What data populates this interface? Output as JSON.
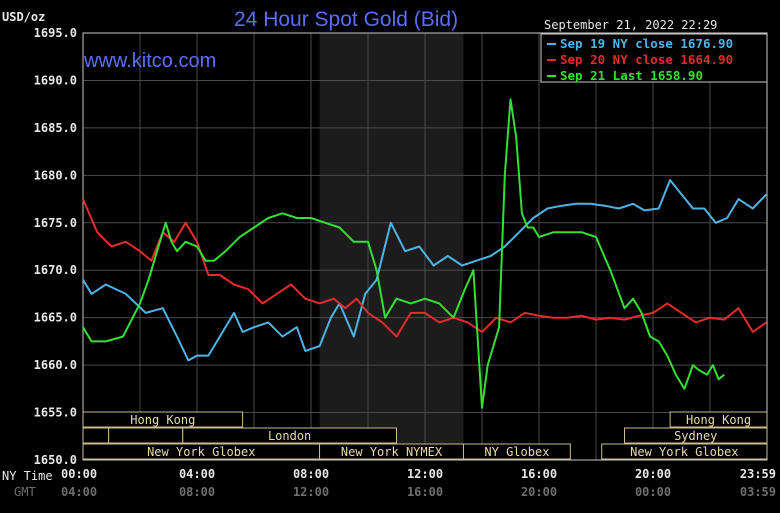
{
  "chart_data": {
    "type": "line",
    "title": "24 Hour Spot Gold (Bid)",
    "ylabel": "USD/oz",
    "ylim": [
      1650,
      1695
    ],
    "y_ticks": [
      "1695.0",
      "1690.0",
      "1685.0",
      "1680.0",
      "1675.0",
      "1670.0",
      "1665.0",
      "1660.0",
      "1655.0",
      "1650.0"
    ],
    "x_range_hours": [
      0,
      24
    ],
    "x_ticks_ny": [
      "00:00",
      "04:00",
      "08:00",
      "12:00",
      "16:00",
      "20:00",
      "23:59"
    ],
    "x_ticks_gmt": [
      "04:00",
      "08:00",
      "12:00",
      "16:00",
      "20:00",
      "00:00",
      "03:59"
    ],
    "x_tick_hours": [
      0,
      4,
      8,
      12,
      16,
      20,
      23.98
    ],
    "ny_time_label": "NY Time",
    "gmt_label": "GMT",
    "watermark": "www.kitco.com",
    "timestamp": "September 21, 2022 22:29",
    "grid": true,
    "shaded_band_hours": [
      8.3,
      13.35
    ],
    "legend_position": "top-right",
    "legend": [
      {
        "text": "Sep 19 NY close 1676.90",
        "color": "#4fb3e6"
      },
      {
        "text": "Sep 20 NY close 1664.90",
        "color": "#e52b2b"
      },
      {
        "text": "Sep 21 Last 1658.90",
        "color": "#33e033"
      }
    ],
    "sessions": [
      {
        "label": "Hong Kong",
        "start": 0,
        "end": 5.6,
        "row": 0,
        "show_label": true
      },
      {
        "label": "Hong Kong",
        "start": 20.6,
        "end": 24,
        "row": 0,
        "show_label": true
      },
      {
        "label": "",
        "start": 0,
        "end": 0.9,
        "row": 1,
        "show_label": false
      },
      {
        "label": "",
        "start": 0.9,
        "end": 3.5,
        "row": 1,
        "show_label": false
      },
      {
        "label": "London",
        "start": 3.5,
        "end": 11.0,
        "row": 1,
        "show_label": true
      },
      {
        "label": "Sydney",
        "start": 19.0,
        "end": 24,
        "row": 1,
        "show_label": true
      },
      {
        "label": "New York Globex",
        "start": 0,
        "end": 8.3,
        "row": 2,
        "show_label": true
      },
      {
        "label": "New York NYMEX",
        "start": 8.3,
        "end": 13.35,
        "row": 2,
        "show_label": true
      },
      {
        "label": "NY Globex",
        "start": 13.35,
        "end": 17.1,
        "row": 2,
        "show_label": true
      },
      {
        "label": "New York Globex",
        "start": 18.2,
        "end": 24,
        "row": 2,
        "show_label": true
      }
    ],
    "series": [
      {
        "name": "Sep 19",
        "color": "#4fb3e6",
        "x": [
          0,
          0.3,
          0.8,
          1.5,
          2.2,
          2.8,
          3.3,
          3.7,
          4.0,
          4.4,
          4.8,
          5.3,
          5.6,
          6.0,
          6.5,
          7.0,
          7.5,
          7.8,
          8.3,
          8.7,
          9.0,
          9.5,
          9.9,
          10.3,
          10.8,
          11.3,
          11.8,
          12.3,
          12.8,
          13.3,
          13.8,
          14.3,
          14.8,
          15.3,
          15.8,
          16.3,
          16.8,
          17.3,
          17.8,
          18.3,
          18.8,
          19.3,
          19.7,
          20.2,
          20.6,
          21.0,
          21.4,
          21.8,
          22.2,
          22.6,
          23.0,
          23.5,
          23.98
        ],
        "y": [
          1669,
          1667.5,
          1668.5,
          1667.5,
          1665.5,
          1666,
          1663,
          1660.5,
          1661,
          1661,
          1663,
          1665.5,
          1663.5,
          1664,
          1664.5,
          1663,
          1664,
          1661.5,
          1662,
          1665,
          1666.5,
          1663,
          1667.5,
          1669,
          1675,
          1672,
          1672.5,
          1670.5,
          1671.5,
          1670.5,
          1671,
          1671.5,
          1672.5,
          1674,
          1675.5,
          1676.5,
          1676.8,
          1677,
          1677,
          1676.8,
          1676.5,
          1677,
          1676.3,
          1676.5,
          1679.5,
          1678,
          1676.5,
          1676.5,
          1675,
          1675.5,
          1677.5,
          1676.5,
          1678
        ]
      },
      {
        "name": "Sep 20",
        "color": "#e52b2b",
        "x": [
          0,
          0.5,
          1.0,
          1.5,
          2.0,
          2.4,
          2.8,
          3.2,
          3.6,
          4.0,
          4.4,
          4.8,
          5.3,
          5.8,
          6.3,
          6.8,
          7.3,
          7.8,
          8.3,
          8.8,
          9.2,
          9.6,
          10.0,
          10.5,
          11.0,
          11.5,
          12.0,
          12.5,
          13.0,
          13.5,
          14.0,
          14.5,
          15.0,
          15.5,
          16.0,
          16.5,
          17.0,
          17.5,
          18.0,
          18.5,
          19.0,
          19.5,
          20.0,
          20.5,
          21.0,
          21.5,
          22.0,
          22.5,
          23.0,
          23.5,
          23.98
        ],
        "y": [
          1677.5,
          1674,
          1672.5,
          1673,
          1672,
          1671,
          1674,
          1673,
          1675,
          1673,
          1669.5,
          1669.5,
          1668.5,
          1668,
          1666.5,
          1667.5,
          1668.5,
          1667,
          1666.5,
          1667,
          1666,
          1667,
          1665.5,
          1664.5,
          1663,
          1665.5,
          1665.5,
          1664.5,
          1665,
          1664.5,
          1663.5,
          1665,
          1664.5,
          1665.5,
          1665.2,
          1665,
          1665,
          1665.2,
          1664.8,
          1665,
          1664.8,
          1665.2,
          1665.5,
          1666.5,
          1665.5,
          1664.5,
          1665,
          1664.8,
          1666,
          1663.5,
          1664.5
        ]
      },
      {
        "name": "Sep 21",
        "color": "#33e033",
        "x": [
          0,
          0.3,
          0.8,
          1.4,
          2.0,
          2.3,
          2.6,
          2.9,
          3.1,
          3.3,
          3.6,
          4.0,
          4.3,
          4.6,
          5.0,
          5.5,
          6.0,
          6.5,
          7.0,
          7.5,
          8.0,
          8.5,
          9.0,
          9.5,
          10.0,
          10.3,
          10.6,
          11.0,
          11.5,
          12.0,
          12.5,
          13.0,
          13.4,
          13.7,
          14.0,
          14.2,
          14.4,
          14.6,
          14.8,
          15.0,
          15.2,
          15.4,
          15.6,
          15.8,
          16.0,
          16.5,
          17.0,
          17.5,
          18.0,
          18.5,
          19.0,
          19.3,
          19.6,
          19.9,
          20.2,
          20.5,
          20.8,
          21.1,
          21.4,
          21.6,
          21.9,
          22.1,
          22.3,
          22.5
        ],
        "y": [
          1664,
          1662.5,
          1662.5,
          1663,
          1666.5,
          1669,
          1672,
          1675,
          1673,
          1672,
          1673,
          1672.5,
          1671,
          1671,
          1672,
          1673.5,
          1674.5,
          1675.5,
          1676,
          1675.5,
          1675.5,
          1675,
          1674.5,
          1673,
          1673,
          1670,
          1665,
          1667,
          1666.5,
          1667,
          1666.5,
          1665,
          1668,
          1670,
          1655.5,
          1660,
          1662,
          1664,
          1680,
          1688,
          1684,
          1676,
          1674.5,
          1674.5,
          1673.5,
          1674,
          1674,
          1674,
          1673.5,
          1670,
          1666,
          1667,
          1665.5,
          1663,
          1662.5,
          1661,
          1659,
          1657.5,
          1660,
          1659.5,
          1659,
          1660,
          1658.5,
          1659
        ]
      }
    ]
  }
}
